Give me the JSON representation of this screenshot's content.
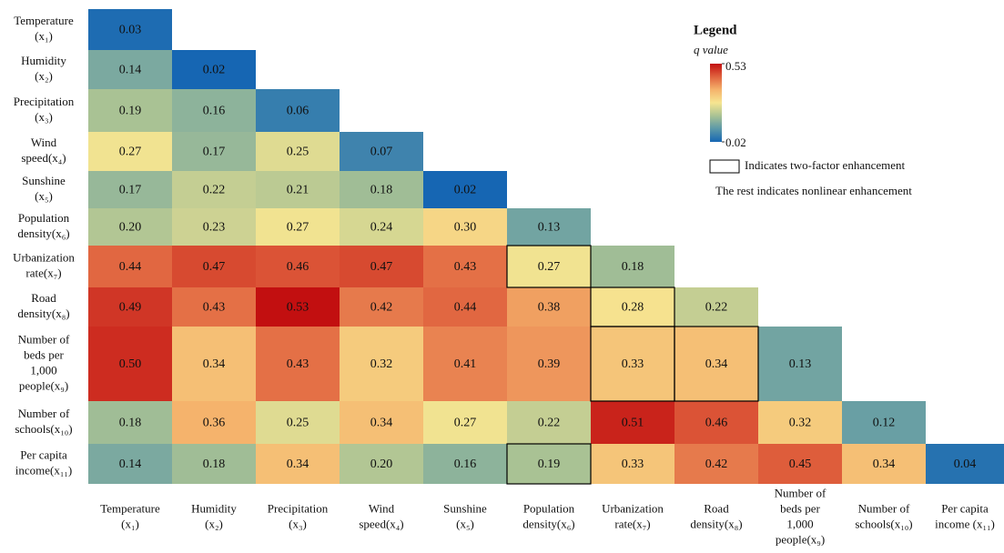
{
  "chart_data": {
    "type": "heatmap",
    "row_labels": [
      [
        "Temperature",
        "(x₁)"
      ],
      [
        "Humidity",
        "(x₂)"
      ],
      [
        "Precipitation",
        "(x₃)"
      ],
      [
        "Wind",
        "speed(x₄)"
      ],
      [
        "Sunshine",
        "(x₅)"
      ],
      [
        "Population",
        "density(x₆)"
      ],
      [
        "Urbanization",
        "rate(x₇)"
      ],
      [
        "Road",
        "density(x₈)"
      ],
      [
        "Number of",
        "beds per",
        "1,000",
        "people(x₉)"
      ],
      [
        "Number of",
        "schools(x₁₀)"
      ],
      [
        "Per capita",
        "income(x₁₁)"
      ]
    ],
    "col_labels": [
      [
        "Temperature",
        "(x₁)"
      ],
      [
        "Humidity",
        "(x₂)"
      ],
      [
        "Precipitation",
        "(x₃)"
      ],
      [
        "Wind",
        "speed(x₄)"
      ],
      [
        "Sunshine",
        "(x₅)"
      ],
      [
        "Population",
        "density(x₆)"
      ],
      [
        "Urbanization",
        "rate(x₇)"
      ],
      [
        "Road",
        "density(x₈)"
      ],
      [
        "Number of",
        "beds per",
        "1,000",
        "people(x₉)"
      ],
      [
        "Number of",
        "schools(x₁₀)"
      ],
      [
        "Per capita",
        "income  (x₁₁)"
      ]
    ],
    "values": [
      [
        0.03
      ],
      [
        0.14,
        0.02
      ],
      [
        0.19,
        0.16,
        0.06
      ],
      [
        0.27,
        0.17,
        0.25,
        0.07
      ],
      [
        0.17,
        0.22,
        0.21,
        0.18,
        0.02
      ],
      [
        0.2,
        0.23,
        0.27,
        0.24,
        0.3,
        0.13
      ],
      [
        0.44,
        0.47,
        0.46,
        0.47,
        0.43,
        0.27,
        0.18
      ],
      [
        0.49,
        0.43,
        0.53,
        0.42,
        0.44,
        0.38,
        0.28,
        0.22
      ],
      [
        0.5,
        0.34,
        0.43,
        0.32,
        0.41,
        0.39,
        0.33,
        0.34,
        0.13
      ],
      [
        0.18,
        0.36,
        0.25,
        0.34,
        0.27,
        0.22,
        0.51,
        0.46,
        0.32,
        0.12
      ],
      [
        0.14,
        0.18,
        0.34,
        0.2,
        0.16,
        0.19,
        0.33,
        0.42,
        0.45,
        0.34,
        0.04
      ]
    ],
    "value_labels": [
      [
        "0.03"
      ],
      [
        "0.14",
        "0.02"
      ],
      [
        "0.19",
        "0.16",
        "0.06"
      ],
      [
        "0.27",
        "0.17",
        "0.25",
        "0.07"
      ],
      [
        "0.17",
        "0.22",
        "0.21",
        "0.18",
        "0.02"
      ],
      [
        "0.20",
        "0.23",
        "0.27",
        "0.24",
        "0.30",
        "0.13"
      ],
      [
        "0.44",
        "0.47",
        "0.46",
        "0.47",
        "0.43",
        "0.27",
        "0.18"
      ],
      [
        "0.49",
        "0.43",
        "0.53",
        "0.42",
        "0.44",
        "0.38",
        "0.28",
        "0.22"
      ],
      [
        "0.50",
        "0.34",
        "0.43",
        "0.32",
        "0.41",
        "0.39",
        "0.33",
        "0.34",
        "0.13"
      ],
      [
        "0.18",
        "0.36",
        "0.25",
        "0.34",
        "0.27",
        "0.22",
        "0.51",
        "0.46",
        "0.32",
        "0.12"
      ],
      [
        "0.14",
        "0.18",
        "0.34",
        "0.20",
        "0.16",
        "0.19",
        "0.33",
        "0.42",
        "0.45",
        "0.34",
        "0.04"
      ]
    ],
    "two_factor_cells": [
      [
        6,
        5
      ],
      [
        7,
        6
      ],
      [
        8,
        6
      ],
      [
        8,
        7
      ],
      [
        10,
        5
      ]
    ],
    "colors": [
      "#1666b3",
      "#5b98a8",
      "#a9c294",
      "#f6e591",
      "#f5b36c",
      "#e0623e",
      "#c20f10"
    ],
    "clim": [
      0.02,
      0.53
    ],
    "colorbar_ticks": [
      0.02,
      0.53
    ],
    "legend_title": "Legend",
    "colorbar_title": "q value",
    "legend_box_text": "Indicates two-factor enhancement",
    "legend_note": "The rest indicates nonlinear enhancement"
  }
}
